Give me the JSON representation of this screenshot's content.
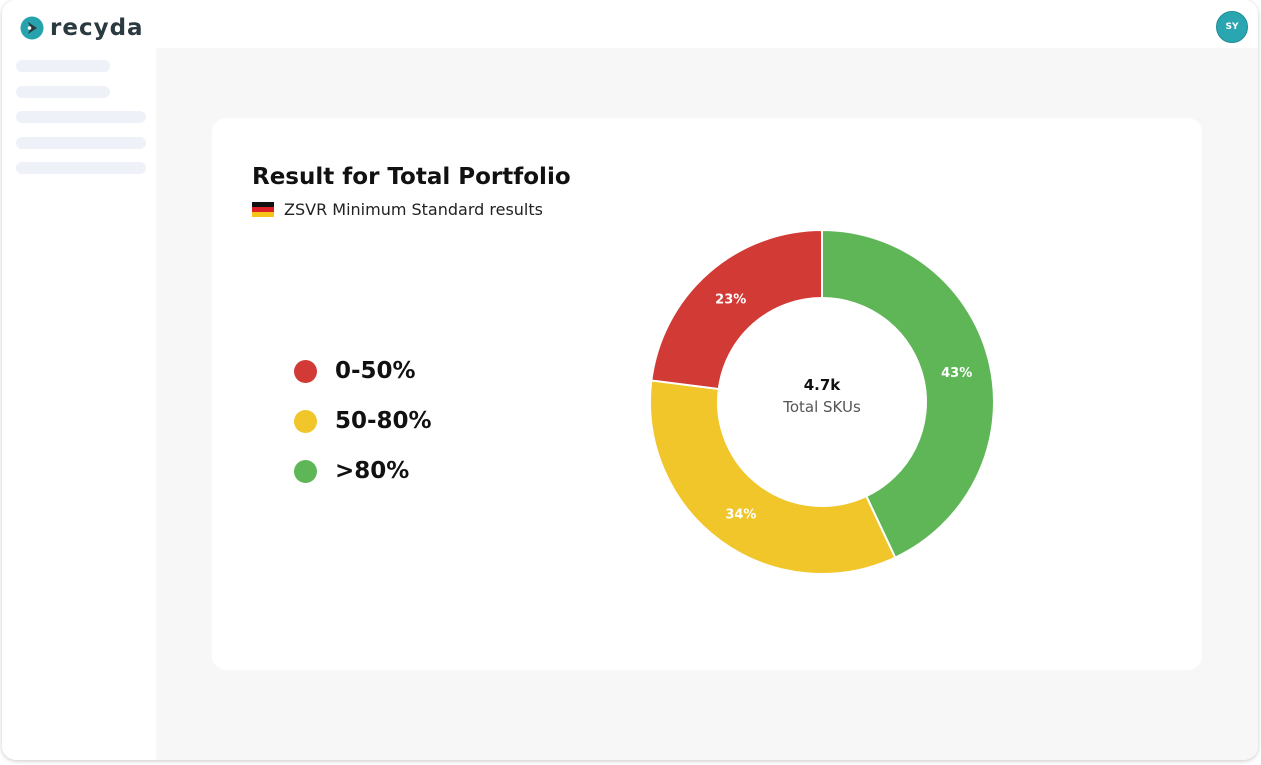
{
  "app": {
    "brand": "recyda",
    "avatar_initials": "SY"
  },
  "card": {
    "title": "Result for Total Portfolio",
    "subtitle": "ZSVR Minimum Standard results",
    "flag": "germany-flag"
  },
  "legend": [
    {
      "label": "0-50%",
      "color": "#d13a35"
    },
    {
      "label": "50-80%",
      "color": "#f0c62b"
    },
    {
      "label": ">80%",
      "color": "#5fb657"
    }
  ],
  "center": {
    "value": "4.7k",
    "label": "Total SKUs"
  },
  "chart_data": {
    "type": "pie",
    "categories": [
      "0-50%",
      "50-80%",
      ">80%"
    ],
    "values": [
      23,
      34,
      43
    ],
    "labels": [
      "23%",
      "34%",
      "43%"
    ],
    "colors": [
      "#d13a35",
      "#f0c62b",
      "#5fb657"
    ],
    "donut": true,
    "center_value": "4.7k",
    "center_label": "Total SKUs"
  }
}
